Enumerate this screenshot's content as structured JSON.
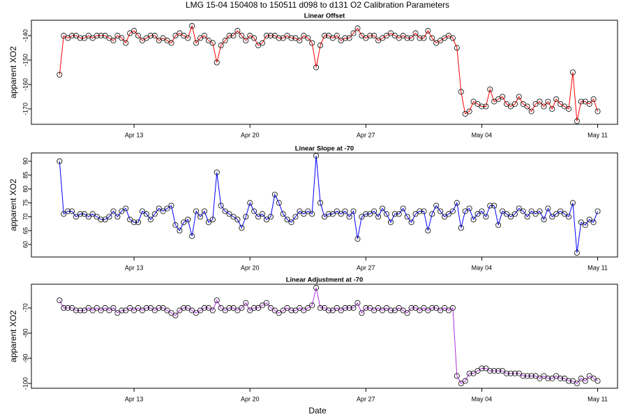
{
  "title": "LMG   15-04    150408 to 150511    d098 to d131    O2 Calibration Parameters",
  "x_label": "Date",
  "chart_data": [
    {
      "type": "line",
      "title": "Linear Offset",
      "y_label": "apparent XO2",
      "xlim": [
        96.8,
        132.2
      ],
      "xticks": [
        {
          "value": 103,
          "label": "Apr 13"
        },
        {
          "value": 110,
          "label": "Apr 20"
        },
        {
          "value": 117,
          "label": "Apr 27"
        },
        {
          "value": 124,
          "label": "May 04"
        },
        {
          "value": 131,
          "label": "May 11"
        }
      ],
      "ylim": [
        -176.3,
        -133.7
      ],
      "yticks": [
        -170,
        -160,
        -150,
        -140
      ],
      "x": [
        98.5,
        98.75,
        99,
        99.25,
        99.5,
        99.75,
        100,
        100.25,
        100.5,
        100.75,
        101,
        101.25,
        101.5,
        101.75,
        102,
        102.25,
        102.5,
        102.75,
        103,
        103.25,
        103.5,
        103.75,
        104,
        104.25,
        104.5,
        104.75,
        105,
        105.25,
        105.5,
        105.75,
        106,
        106.25,
        106.5,
        106.75,
        107,
        107.25,
        107.5,
        107.75,
        108,
        108.25,
        108.5,
        108.75,
        109,
        109.25,
        109.5,
        109.75,
        110,
        110.25,
        110.5,
        110.75,
        111,
        111.25,
        111.5,
        111.75,
        112,
        112.25,
        112.5,
        112.75,
        113,
        113.25,
        113.5,
        113.75,
        114,
        114.25,
        114.5,
        114.75,
        115,
        115.25,
        115.5,
        115.75,
        116,
        116.25,
        116.5,
        116.75,
        117,
        117.25,
        117.5,
        117.75,
        118,
        118.25,
        118.5,
        118.75,
        119,
        119.25,
        119.5,
        119.75,
        120,
        120.25,
        120.5,
        120.75,
        121,
        121.25,
        121.5,
        121.75,
        122,
        122.25,
        122.5,
        122.75,
        123,
        123.25,
        123.5,
        123.75,
        124,
        124.25,
        124.5,
        124.75,
        125,
        125.25,
        125.5,
        125.75,
        126,
        126.25,
        126.5,
        126.75,
        127,
        127.25,
        127.5,
        127.75,
        128,
        128.25,
        128.5,
        128.75,
        129,
        129.25,
        129.5,
        129.75,
        130,
        130.25,
        130.5,
        130.75,
        131
      ],
      "series": [
        {
          "color": "#ff0000",
          "values": [
            -156,
            -140,
            -141,
            -140,
            -140,
            -141,
            -141,
            -140,
            -141,
            -140,
            -140,
            -140,
            -141,
            -142,
            -140,
            -141,
            -143,
            -139,
            -138,
            -140,
            -142,
            -141,
            -140,
            -140,
            -142,
            -141,
            -142,
            -143,
            -140,
            -139,
            -140,
            -141,
            -136,
            -143,
            -141,
            -140,
            -142,
            -143,
            -151,
            -144,
            -142,
            -140,
            -140,
            -138,
            -140,
            -142,
            -140,
            -141,
            -144,
            -143,
            -140,
            -140,
            -140,
            -141,
            -141,
            -140,
            -141,
            -141,
            -142,
            -140,
            -141,
            -143,
            -153,
            -144,
            -140,
            -140,
            -141,
            -140,
            -142,
            -141,
            -141,
            -139,
            -137,
            -140,
            -141,
            -140,
            -140,
            -142,
            -141,
            -140,
            -139,
            -140,
            -141,
            -140,
            -141,
            -141,
            -139,
            -141,
            -141,
            -138,
            -141,
            -143,
            -142,
            -141,
            -140,
            -141,
            -145,
            -163,
            -172,
            -171,
            -167,
            -168,
            -169,
            -169,
            -162,
            -167,
            -166,
            -165,
            -168,
            -169,
            -168,
            -165,
            -168,
            -169,
            -171,
            -168,
            -167,
            -169,
            -167,
            -170,
            -166,
            -168,
            -169,
            -170,
            -155,
            -175,
            -167,
            -167,
            -168,
            -166,
            -171
          ]
        }
      ]
    },
    {
      "type": "line",
      "title": "Linear Slope at -70",
      "y_label": "apparent XO2",
      "xlim": [
        96.8,
        132.2
      ],
      "xticks": [
        {
          "value": 103,
          "label": "Apr 13"
        },
        {
          "value": 110,
          "label": "Apr 20"
        },
        {
          "value": 117,
          "label": "Apr 27"
        },
        {
          "value": 124,
          "label": "May 04"
        },
        {
          "value": 131,
          "label": "May 11"
        }
      ],
      "ylim": [
        55.5,
        93.0
      ],
      "yticks": [
        60,
        65,
        70,
        75,
        80,
        85,
        90
      ],
      "x": [
        98.5,
        98.75,
        99,
        99.25,
        99.5,
        99.75,
        100,
        100.25,
        100.5,
        100.75,
        101,
        101.25,
        101.5,
        101.75,
        102,
        102.25,
        102.5,
        102.75,
        103,
        103.25,
        103.5,
        103.75,
        104,
        104.25,
        104.5,
        104.75,
        105,
        105.25,
        105.5,
        105.75,
        106,
        106.25,
        106.5,
        106.75,
        107,
        107.25,
        107.5,
        107.75,
        108,
        108.25,
        108.5,
        108.75,
        109,
        109.25,
        109.5,
        109.75,
        110,
        110.25,
        110.5,
        110.75,
        111,
        111.25,
        111.5,
        111.75,
        112,
        112.25,
        112.5,
        112.75,
        113,
        113.25,
        113.5,
        113.75,
        114,
        114.25,
        114.5,
        114.75,
        115,
        115.25,
        115.5,
        115.75,
        116,
        116.25,
        116.5,
        116.75,
        117,
        117.25,
        117.5,
        117.75,
        118,
        118.25,
        118.5,
        118.75,
        119,
        119.25,
        119.5,
        119.75,
        120,
        120.25,
        120.5,
        120.75,
        121,
        121.25,
        121.5,
        121.75,
        122,
        122.25,
        122.5,
        122.75,
        123,
        123.25,
        123.5,
        123.75,
        124,
        124.25,
        124.5,
        124.75,
        125,
        125.25,
        125.5,
        125.75,
        126,
        126.25,
        126.5,
        126.75,
        127,
        127.25,
        127.5,
        127.75,
        128,
        128.25,
        128.5,
        128.75,
        129,
        129.25,
        129.5,
        129.75,
        130,
        130.25,
        130.5,
        130.75,
        131
      ],
      "series": [
        {
          "color": "#0000ff",
          "values": [
            90,
            71,
            72,
            72,
            70,
            71,
            71,
            70,
            71,
            70,
            69,
            69,
            70,
            72,
            70,
            72,
            73,
            69,
            68,
            68,
            72,
            71,
            69,
            71,
            73,
            72,
            73,
            74,
            67,
            65,
            68,
            69,
            63,
            72,
            70,
            72,
            68,
            69,
            86,
            74,
            72,
            71,
            70,
            69,
            66,
            70,
            75,
            72,
            70,
            71,
            69,
            70,
            78,
            75,
            71,
            69,
            68,
            70,
            72,
            71,
            72,
            71,
            92,
            75,
            70,
            71,
            71,
            72,
            71,
            72,
            70,
            72,
            62,
            70,
            71,
            71,
            72,
            70,
            73,
            71,
            68,
            71,
            71,
            73,
            70,
            68,
            71,
            72,
            72,
            65,
            71,
            74,
            72,
            70,
            71,
            72,
            75,
            66,
            72,
            73,
            69,
            71,
            72,
            70,
            74,
            74,
            67,
            72,
            71,
            70,
            71,
            73,
            72,
            70,
            72,
            71,
            72,
            69,
            73,
            70,
            71,
            72,
            71,
            70,
            75,
            57,
            68,
            67,
            69,
            68,
            72
          ]
        }
      ]
    },
    {
      "type": "line",
      "title": "Linear Adjustment at -70",
      "y_label": "apparent XO2",
      "xlim": [
        96.8,
        132.2
      ],
      "xticks": [
        {
          "value": 103,
          "label": "Apr 13"
        },
        {
          "value": 110,
          "label": "Apr 20"
        },
        {
          "value": 117,
          "label": "Apr 27"
        },
        {
          "value": 124,
          "label": "May 04"
        },
        {
          "value": 131,
          "label": "May 11"
        }
      ],
      "ylim": [
        -101.9,
        -60.6
      ],
      "yticks": [
        -100,
        -90,
        -80,
        -70
      ],
      "x": [
        98.5,
        98.75,
        99,
        99.25,
        99.5,
        99.75,
        100,
        100.25,
        100.5,
        100.75,
        101,
        101.25,
        101.5,
        101.75,
        102,
        102.25,
        102.5,
        102.75,
        103,
        103.25,
        103.5,
        103.75,
        104,
        104.25,
        104.5,
        104.75,
        105,
        105.25,
        105.5,
        105.75,
        106,
        106.25,
        106.5,
        106.75,
        107,
        107.25,
        107.5,
        107.75,
        108,
        108.25,
        108.5,
        108.75,
        109,
        109.25,
        109.5,
        109.75,
        110,
        110.25,
        110.5,
        110.75,
        111,
        111.25,
        111.5,
        111.75,
        112,
        112.25,
        112.5,
        112.75,
        113,
        113.25,
        113.5,
        113.75,
        114,
        114.25,
        114.5,
        114.75,
        115,
        115.25,
        115.5,
        115.75,
        116,
        116.25,
        116.5,
        116.75,
        117,
        117.25,
        117.5,
        117.75,
        118,
        118.25,
        118.5,
        118.75,
        119,
        119.25,
        119.5,
        119.75,
        120,
        120.25,
        120.5,
        120.75,
        121,
        121.25,
        121.5,
        121.75,
        122,
        122.25,
        122.5,
        122.75,
        123,
        123.25,
        123.5,
        123.75,
        124,
        124.25,
        124.5,
        124.75,
        125,
        125.25,
        125.5,
        125.75,
        126,
        126.25,
        126.5,
        126.75,
        127,
        127.25,
        127.5,
        127.75,
        128,
        128.25,
        128.5,
        128.75,
        129,
        129.25,
        129.5,
        129.75,
        130,
        130.25,
        130.5,
        130.75,
        131
      ],
      "series": [
        {
          "color": "#b030e0",
          "values": [
            -67,
            -70,
            -70,
            -70,
            -71,
            -71,
            -71,
            -70,
            -71,
            -70,
            -71,
            -70,
            -71,
            -70,
            -72,
            -71,
            -71,
            -70,
            -71,
            -70,
            -71,
            -70,
            -70,
            -71,
            -70,
            -70,
            -71,
            -72,
            -73,
            -71,
            -70,
            -70,
            -71,
            -72,
            -71,
            -70,
            -70,
            -71,
            -67,
            -70,
            -71,
            -70,
            -70,
            -71,
            -70,
            -68,
            -71,
            -70,
            -70,
            -69,
            -68,
            -70,
            -71,
            -72,
            -71,
            -70,
            -71,
            -71,
            -70,
            -71,
            -70,
            -69,
            -62,
            -70,
            -70,
            -71,
            -71,
            -70,
            -71,
            -70,
            -70,
            -70,
            -68,
            -72,
            -70,
            -70,
            -71,
            -70,
            -71,
            -70,
            -71,
            -71,
            -70,
            -71,
            -72,
            -70,
            -70,
            -71,
            -70,
            -71,
            -70,
            -70,
            -71,
            -70,
            -71,
            -70,
            -97,
            -100,
            -99,
            -96,
            -96,
            -95,
            -94,
            -94,
            -95,
            -95,
            -95,
            -95,
            -96,
            -96,
            -96,
            -96,
            -97,
            -97,
            -97,
            -97,
            -98,
            -97,
            -98,
            -98,
            -97,
            -98,
            -98,
            -99,
            -99,
            -100,
            -98,
            -99,
            -97,
            -98,
            -99
          ]
        }
      ]
    }
  ]
}
